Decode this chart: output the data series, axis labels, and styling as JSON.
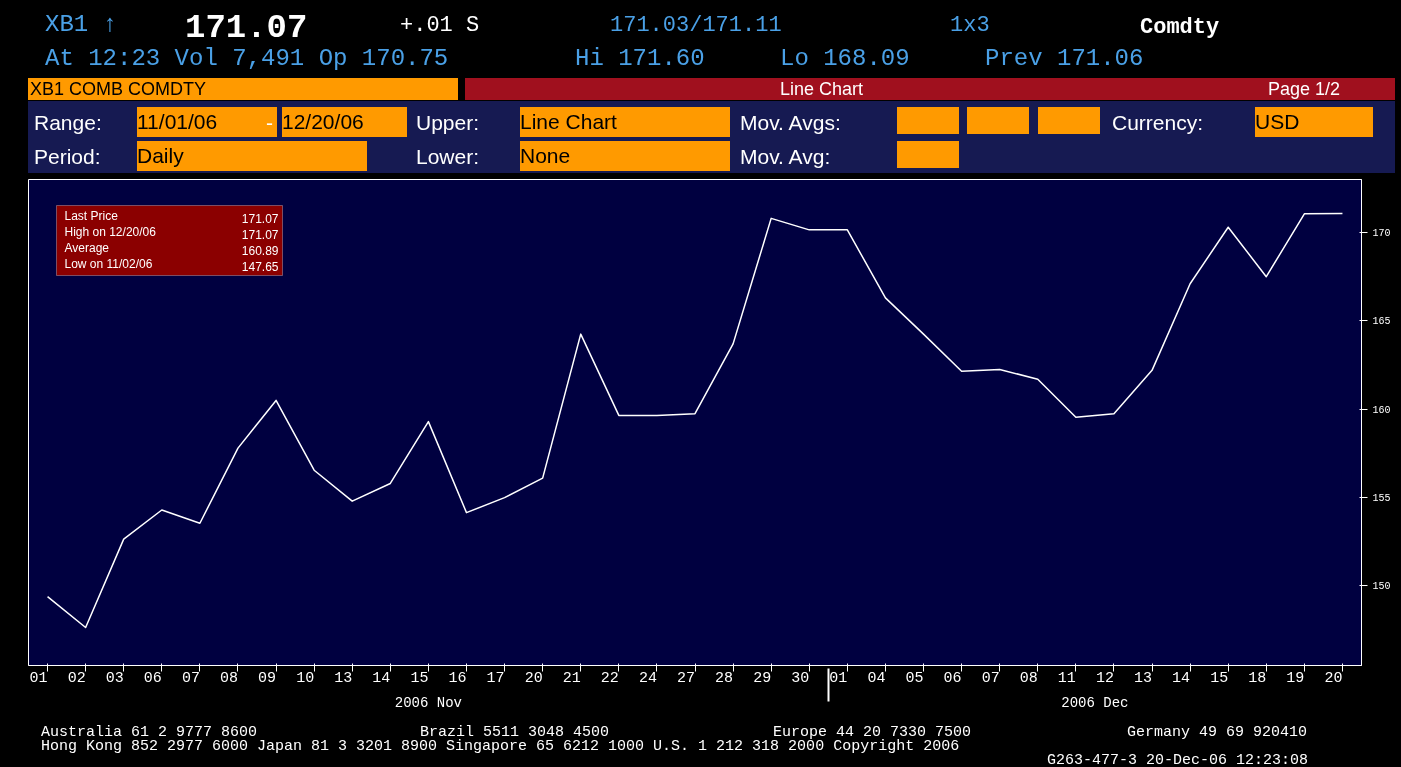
{
  "chart_data": {
    "type": "line",
    "categories": [
      "01",
      "02",
      "03",
      "06",
      "07",
      "08",
      "09",
      "10",
      "13",
      "14",
      "15",
      "16",
      "17",
      "20",
      "21",
      "22",
      "24",
      "27",
      "28",
      "29",
      "30",
      "01",
      "04",
      "05",
      "06",
      "07",
      "08",
      "11",
      "12",
      "13",
      "14",
      "15",
      "18",
      "19",
      "20"
    ],
    "series": [
      {
        "color": "#ffffff",
        "values": [
          149.4,
          147.65,
          152.65,
          154.3,
          153.55,
          157.8,
          160.5,
          156.55,
          154.8,
          155.8,
          159.3,
          154.15,
          155.0,
          156.1,
          164.25,
          159.65,
          159.65,
          159.75,
          163.7,
          170.8,
          170.15,
          170.15,
          166.3,
          164.25,
          162.15,
          162.25,
          161.7,
          159.55,
          159.75,
          162.2,
          167.1,
          170.3,
          167.5,
          171.06,
          171.07
        ]
      }
    ],
    "ylim": [
      145.5,
      173
    ],
    "yticks": [
      150,
      155,
      160,
      165,
      170
    ],
    "grid": false,
    "annotations": [
      "XB1 ↑",
      "171.07",
      "+.01 S",
      "171.03/171.11",
      "1x3",
      "Comdty",
      "At 12:23 Vol 7,491 Op 170.75",
      "Hi 171.60",
      "Lo 168.09",
      "Prev 171.06",
      "XB1 COMB COMDTY",
      "Line Chart",
      "Page 1/2",
      "Range:",
      "11/01/06",
      "-",
      "12/20/06",
      "Upper:",
      "Line Chart",
      "Mov. Avgs:",
      "Currency:",
      "USD",
      "Period:",
      "Daily",
      "Lower:",
      "None",
      "Mov. Avg:",
      "Last Price",
      "171.07",
      "High on  12/20/06",
      "171.07",
      "Average",
      "160.89",
      "Low on  11/02/06",
      "147.65",
      "2006 Nov",
      "2006 Dec",
      "Australia 61 2 9777 8600",
      "Brazil 5511 3048 4500",
      "Europe 44 20 7330 7500",
      "Germany 49 69 920410",
      "Hong Kong 852 2977 6000 Japan 81 3 3201 8900 Singapore 65 6212 1000 U.S. 1 212 318 2000 Copyright 2006",
      "G263-477-3 20-Dec-06 12:23:08"
    ]
  }
}
